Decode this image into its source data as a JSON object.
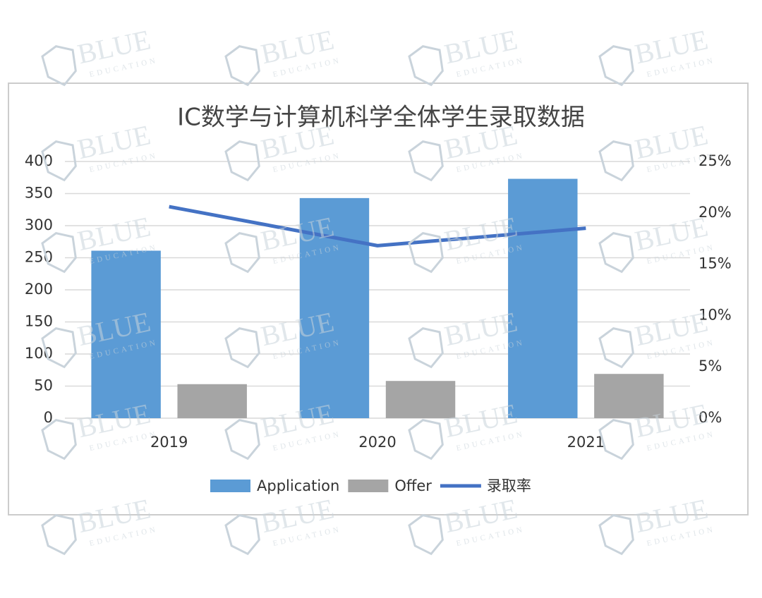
{
  "chart_data": {
    "type": "bar",
    "title": "IC数学与计算机科学全体学生录取数据",
    "categories": [
      "2019",
      "2020",
      "2021"
    ],
    "series": [
      {
        "name": "Application",
        "color": "#5b9bd5",
        "values": [
          261,
          343,
          373
        ]
      },
      {
        "name": "Offer",
        "color": "#a5a5a5",
        "values": [
          53,
          58,
          69
        ]
      },
      {
        "name": "录取率",
        "color": "#4472c4",
        "type": "line",
        "axis": "y2",
        "values": [
          20.6,
          16.8,
          18.5
        ]
      }
    ],
    "ylim": [
      0,
      400
    ],
    "yticks": [
      0,
      50,
      100,
      150,
      200,
      250,
      300,
      350,
      400
    ],
    "y2lim": [
      0,
      25
    ],
    "y2ticks": [
      {
        "value": 0,
        "label": "0%"
      },
      {
        "value": 5,
        "label": "5%"
      },
      {
        "value": 10,
        "label": "10%"
      },
      {
        "value": 15,
        "label": "15%"
      },
      {
        "value": 20,
        "label": "20%"
      },
      {
        "value": 25,
        "label": "25%"
      }
    ],
    "grid": true,
    "legend": "bottom"
  },
  "watermark": {
    "brand": "BLUE",
    "sub": "EDUCATION"
  }
}
